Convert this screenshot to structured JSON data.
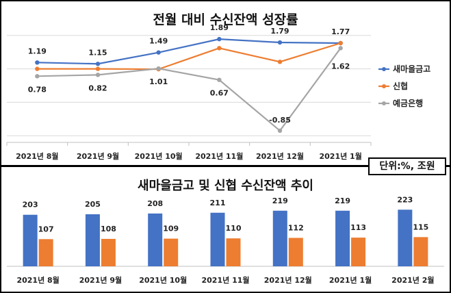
{
  "unit_label": "단위:%, 조원",
  "chart_data": [
    {
      "type": "line",
      "title": "전월 대비 수신잔액 성장률",
      "categories": [
        "2021년 8월",
        "2021년 9월",
        "2021년 10월",
        "2021년 11월",
        "2021년 12월",
        "2021년 1월"
      ],
      "ylim": [
        -1.2,
        2.2
      ],
      "grid": true,
      "legend_position": "right",
      "series": [
        {
          "name": "새마을금고",
          "color": "#4472C4",
          "values": [
            1.19,
            1.15,
            1.49,
            1.89,
            1.79,
            1.77
          ],
          "labels": [
            "1.19",
            "1.15",
            "1.49",
            "1.89",
            "1.79",
            "1.77"
          ]
        },
        {
          "name": "신협",
          "color": "#ED7D31",
          "values": [
            1.0,
            1.0,
            0.99,
            1.62,
            1.21,
            1.77
          ],
          "labels": [
            "",
            "",
            "",
            "",
            "",
            ""
          ]
        },
        {
          "name": "예금은행",
          "color": "#A5A5A5",
          "values": [
            0.78,
            0.82,
            1.01,
            0.67,
            -0.85,
            1.62
          ],
          "labels": [
            "0.78",
            "0.82",
            "1.01",
            "0.67",
            "-0.85",
            "1.62"
          ]
        }
      ]
    },
    {
      "type": "bar",
      "title": "새마을금고 및 신협 수신잔액 추이",
      "categories": [
        "2021년 8월",
        "2021년 9월",
        "2021년 10월",
        "2021년 11월",
        "2021년 12월",
        "2021년 1월",
        "2021년 2월"
      ],
      "ylim": [
        0,
        240
      ],
      "grid": false,
      "series": [
        {
          "color": "#4472C4",
          "values": [
            203,
            205,
            208,
            211,
            219,
            219,
            223
          ]
        },
        {
          "color": "#ED7D31",
          "values": [
            107,
            108,
            109,
            110,
            112,
            113,
            115
          ]
        }
      ]
    }
  ]
}
